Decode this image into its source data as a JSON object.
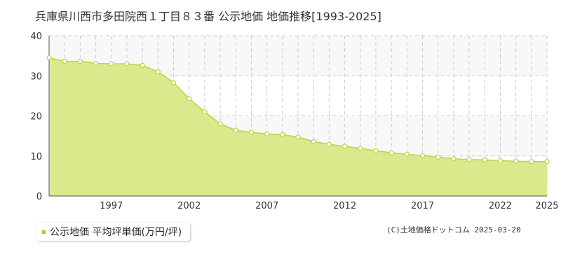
{
  "title": "兵庫県川西市多田院西１丁目８３番 公示地価 地価推移[1993-2025]",
  "legend": {
    "label": "公示地価 平均坪単価(万円/坪)"
  },
  "credit": "(C)土地価格ドットコム 2025-03-20",
  "colors": {
    "fill": "#d9ea8c",
    "line": "#b9d34a",
    "point_stroke": "#b9d34a",
    "point_fill": "#ffffff",
    "band": "#f8f8f8",
    "grid": "#cccccc"
  },
  "chart_data": {
    "type": "area",
    "ylim": [
      0,
      40
    ],
    "yticks": [
      0,
      10,
      20,
      30,
      40
    ],
    "xlim": [
      1993,
      2025
    ],
    "xticks": [
      1997,
      2002,
      2007,
      2012,
      2017,
      2022,
      2025
    ],
    "grid": true,
    "series": [
      {
        "x": [
          1993,
          1994,
          1995,
          1996,
          1997,
          1998,
          1999,
          2000,
          2001,
          2002,
          2003,
          2004,
          2005,
          2006,
          2007,
          2008,
          2009,
          2010,
          2011,
          2012,
          2013,
          2014,
          2015,
          2016,
          2017,
          2018,
          2019,
          2020,
          2021,
          2022,
          2023,
          2024,
          2025
        ],
        "values": [
          34.5,
          33.6,
          33.6,
          33.1,
          33.0,
          33.0,
          32.6,
          31.0,
          28.3,
          24.3,
          21.0,
          18.0,
          16.4,
          15.9,
          15.5,
          15.3,
          14.7,
          13.6,
          12.9,
          12.4,
          11.9,
          11.3,
          10.8,
          10.4,
          10.1,
          9.7,
          9.3,
          9.1,
          9.0,
          8.8,
          8.7,
          8.6,
          8.6
        ]
      }
    ]
  }
}
